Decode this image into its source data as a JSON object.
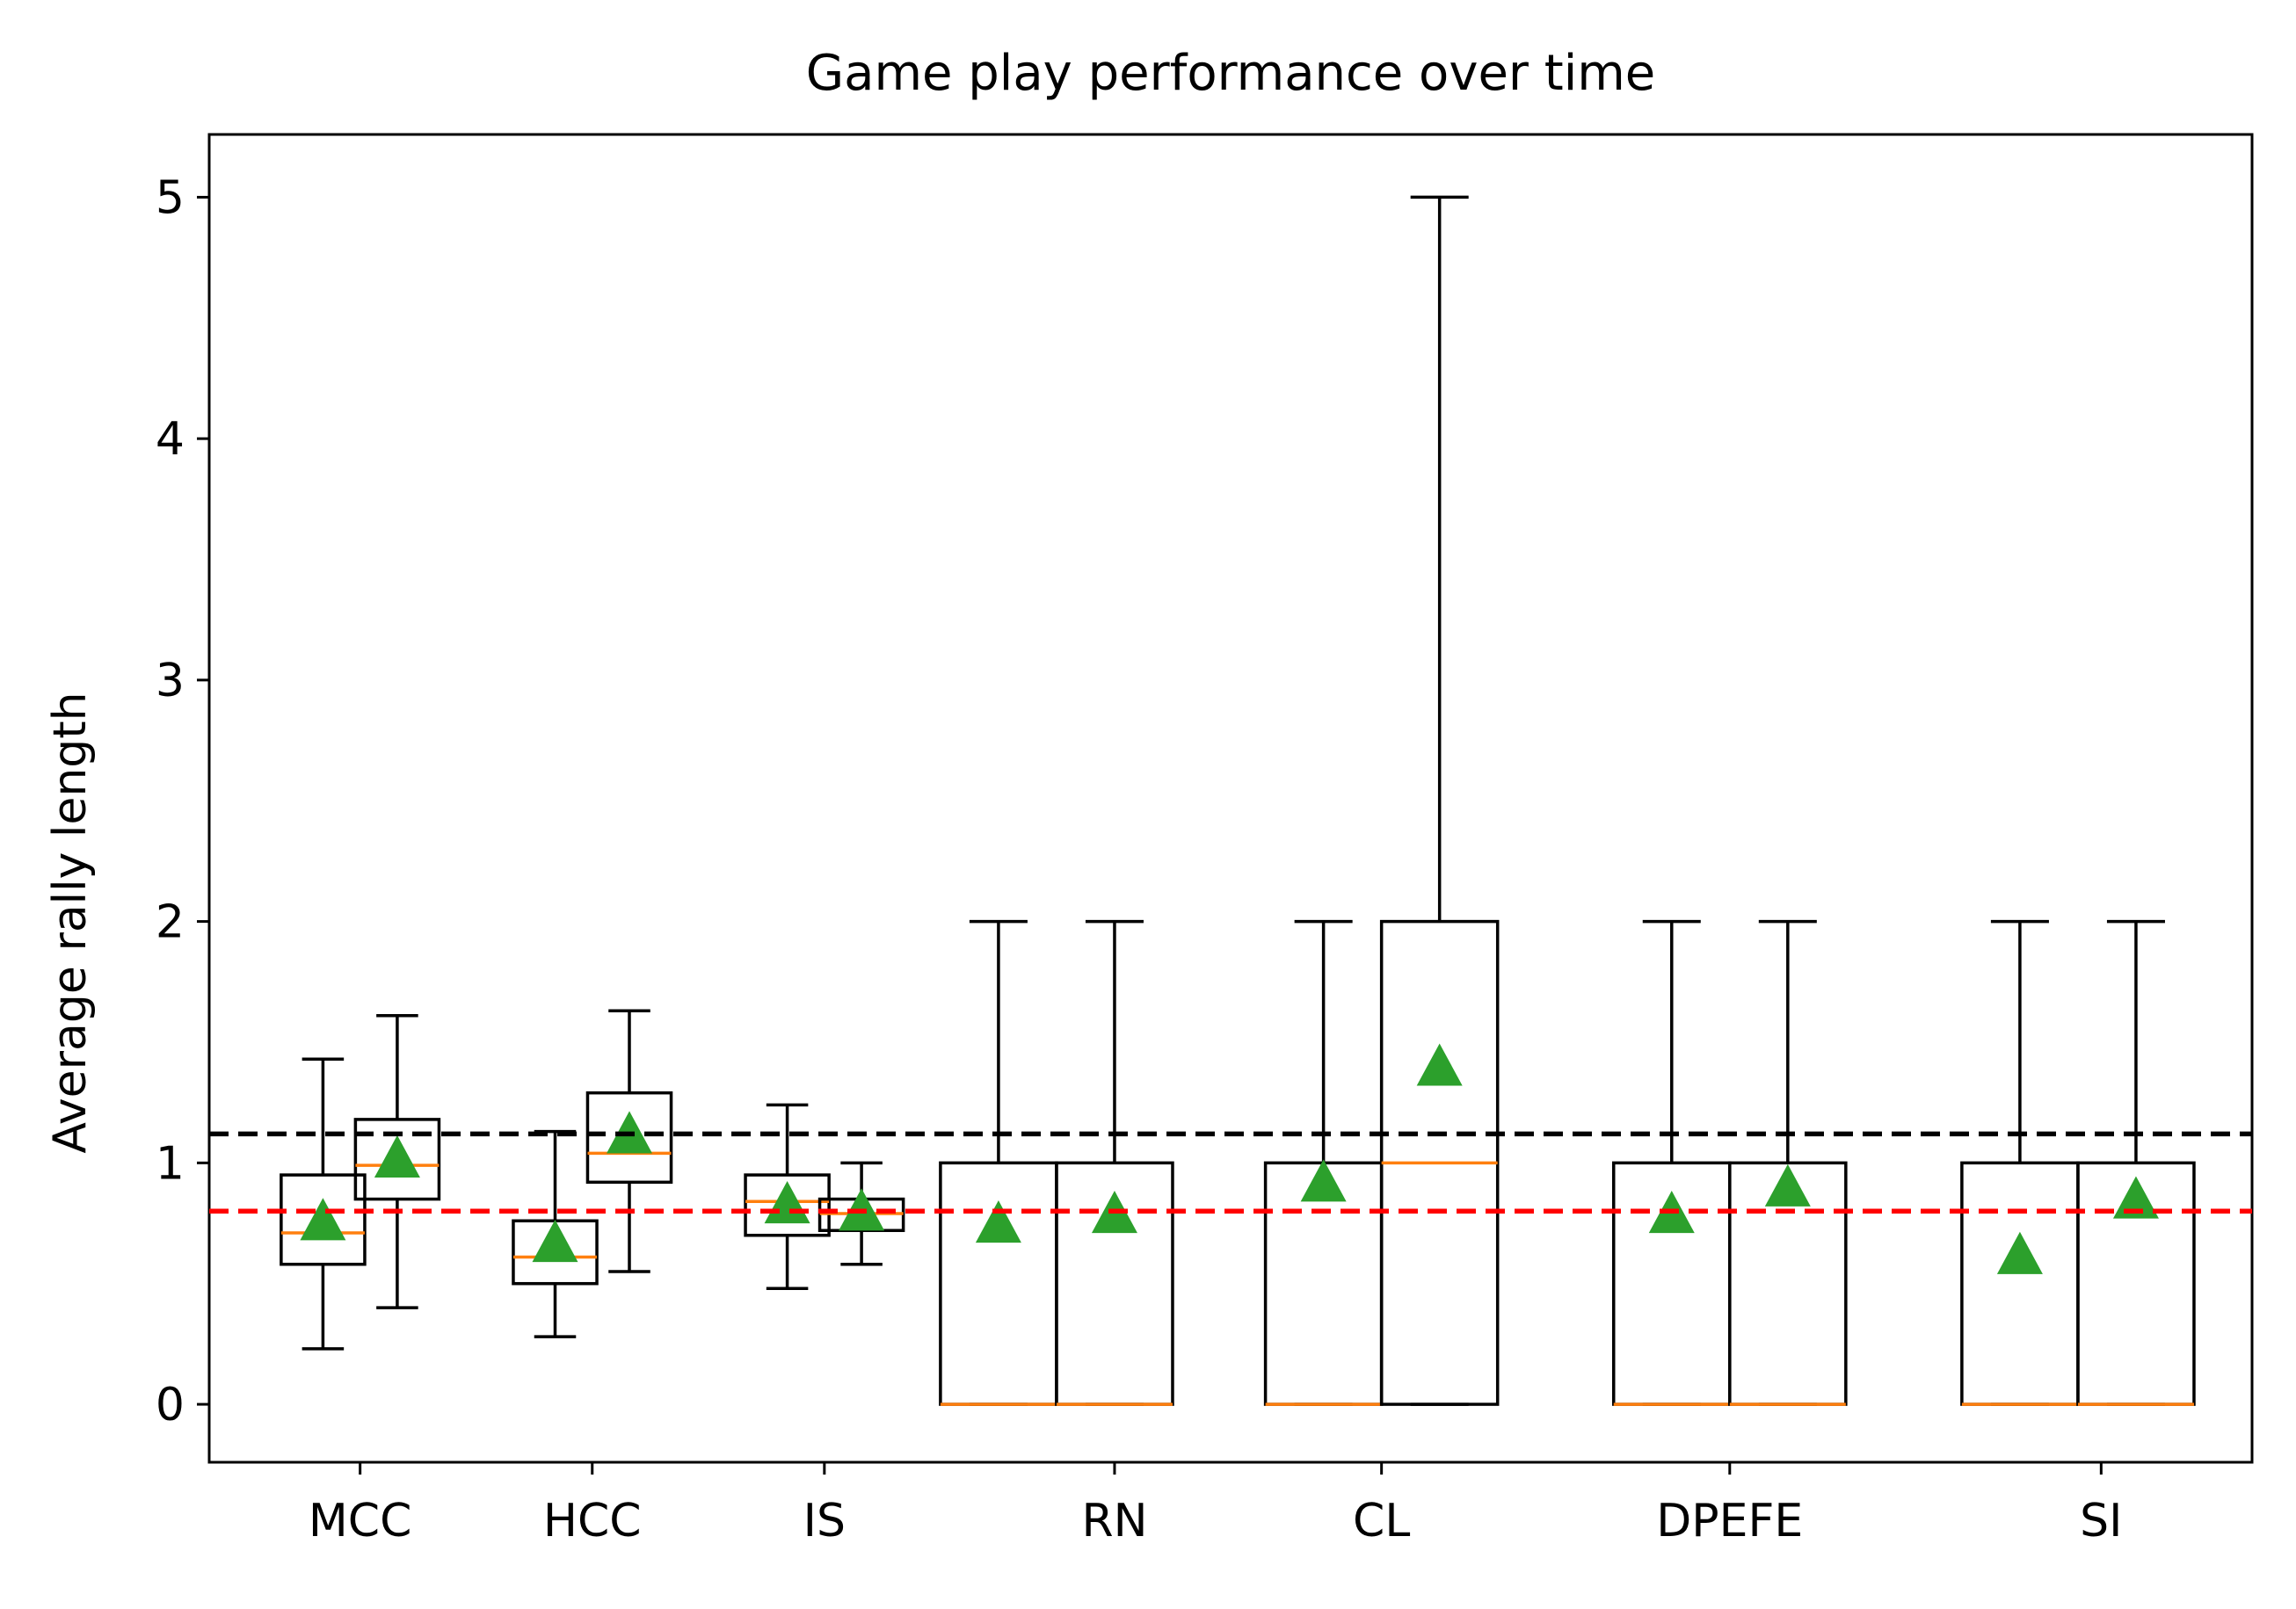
{
  "chart_data": {
    "type": "box",
    "title": "Game play performance over time",
    "ylabel": "Average rally length",
    "xlabel": "",
    "ylim": [
      -0.24,
      5.26
    ],
    "yticks": [
      0,
      1,
      2,
      3,
      4,
      5
    ],
    "grid": false,
    "legend": "none",
    "groups": [
      {
        "label": "MCC",
        "boxes": [
          {
            "x": 0.68,
            "whisker_low": 0.23,
            "q1": 0.58,
            "median": 0.71,
            "q3": 0.95,
            "whisker_high": 1.43,
            "mean": 0.76
          },
          {
            "x": 1.32,
            "whisker_low": 0.4,
            "q1": 0.85,
            "median": 0.99,
            "q3": 1.18,
            "whisker_high": 1.61,
            "mean": 1.02
          }
        ]
      },
      {
        "label": "HCC",
        "boxes": [
          {
            "x": 2.68,
            "whisker_low": 0.28,
            "q1": 0.5,
            "median": 0.61,
            "q3": 0.76,
            "whisker_high": 1.13,
            "mean": 0.67
          },
          {
            "x": 3.32,
            "whisker_low": 0.55,
            "q1": 0.92,
            "median": 1.04,
            "q3": 1.29,
            "whisker_high": 1.63,
            "mean": 1.12
          }
        ]
      },
      {
        "label": "IS",
        "boxes": [
          {
            "x": 4.68,
            "whisker_low": 0.48,
            "q1": 0.7,
            "median": 0.84,
            "q3": 0.95,
            "whisker_high": 1.24,
            "mean": 0.83
          },
          {
            "x": 5.32,
            "whisker_low": 0.58,
            "q1": 0.72,
            "median": 0.79,
            "q3": 0.85,
            "whisker_high": 1.0,
            "mean": 0.8
          }
        ]
      },
      {
        "label": "RN",
        "boxes": [
          {
            "x": 6.5,
            "whisker_low": 0,
            "q1": 0,
            "median": 0,
            "q3": 1,
            "whisker_high": 2,
            "mean": 0.75
          },
          {
            "x": 7.5,
            "whisker_low": 0,
            "q1": 0,
            "median": 0,
            "q3": 1,
            "whisker_high": 2,
            "mean": 0.79
          }
        ]
      },
      {
        "label": "CL",
        "boxes": [
          {
            "x": 9.3,
            "whisker_low": 0,
            "q1": 0,
            "median": 0,
            "q3": 1,
            "whisker_high": 2,
            "mean": 0.92
          },
          {
            "x": 10.3,
            "whisker_low": 0,
            "q1": 0,
            "median": 1,
            "q3": 2,
            "whisker_high": 5,
            "mean": 1.4
          }
        ]
      },
      {
        "label": "DPEFE",
        "boxes": [
          {
            "x": 12.3,
            "whisker_low": 0,
            "q1": 0,
            "median": 0,
            "q3": 1,
            "whisker_high": 2,
            "mean": 0.79
          },
          {
            "x": 13.3,
            "whisker_low": 0,
            "q1": 0,
            "median": 0,
            "q3": 1,
            "whisker_high": 2,
            "mean": 0.9
          }
        ]
      },
      {
        "label": "SI",
        "boxes": [
          {
            "x": 15.3,
            "whisker_low": 0,
            "q1": 0,
            "median": 0,
            "q3": 1,
            "whisker_high": 2,
            "mean": 0.62
          },
          {
            "x": 16.3,
            "whisker_low": 0,
            "q1": 0,
            "median": 0,
            "q3": 1,
            "whisker_high": 2,
            "mean": 0.85
          }
        ]
      }
    ],
    "reference_lines": [
      {
        "y": 1.12,
        "color": "#000000",
        "style": "dashed"
      },
      {
        "y": 0.8,
        "color": "#ff0000",
        "style": "dashed"
      }
    ],
    "xlim": [
      -0.3,
      17.3
    ],
    "tick_positions": [
      1.0,
      3.0,
      5.0,
      7.5,
      9.8,
      12.8,
      16.0
    ],
    "colors": {
      "box": "#000000",
      "median": "#ff7f0e",
      "mean": "#2ca02c",
      "axis": "#000000"
    }
  }
}
